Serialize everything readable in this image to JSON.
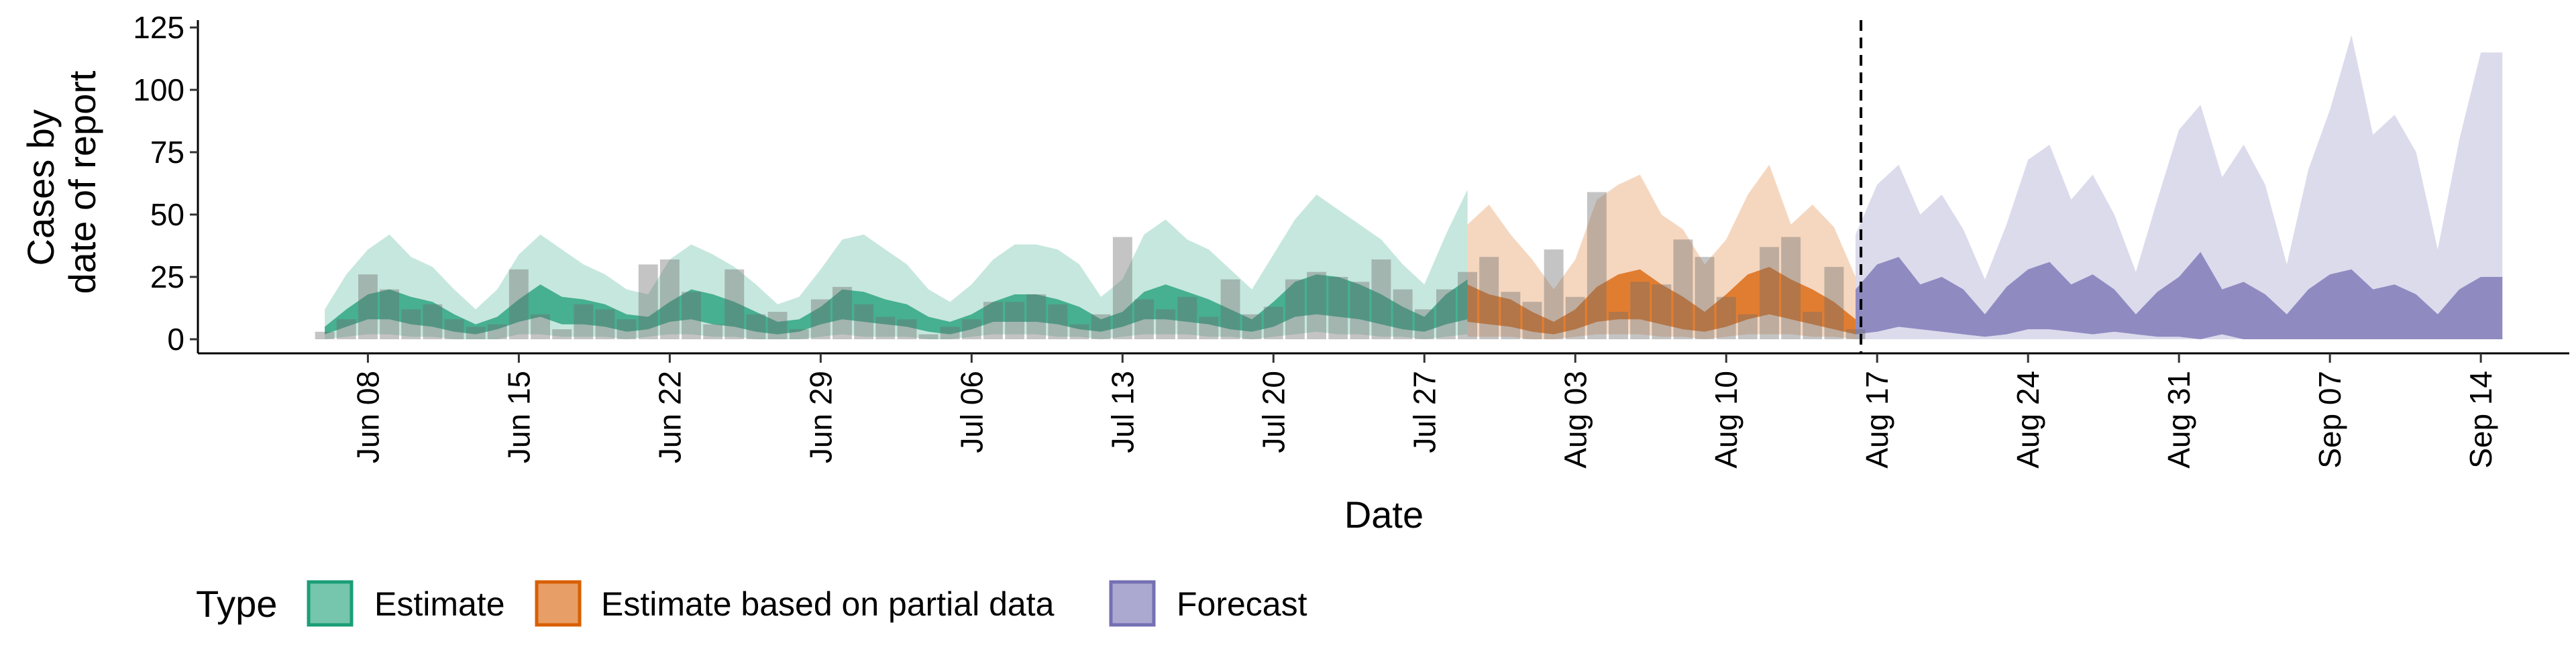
{
  "chart_data": {
    "type": "area",
    "xlabel": "Date",
    "ylabel_lines": [
      "Cases by",
      "date of report"
    ],
    "x_start": "2020-06-05",
    "forecast_start": "2020-08-16",
    "ylim": [
      -5,
      130
    ],
    "yticks": [
      0,
      25,
      50,
      75,
      100,
      125
    ],
    "ytick_labels": [
      "0",
      "25",
      "50",
      "75",
      "100",
      "125"
    ],
    "xtick_labels": [
      "Jun 08",
      "Jun 15",
      "Jun 22",
      "Jun 29",
      "Jul 06",
      "Jul 13",
      "Jul 20",
      "Jul 27",
      "Aug 03",
      "Aug 10",
      "Aug 17",
      "Aug 24",
      "Aug 31",
      "Sep 07",
      "Sep 14"
    ],
    "xtick_dates": [
      "2020-06-08",
      "2020-06-15",
      "2020-06-22",
      "2020-06-29",
      "2020-07-06",
      "2020-07-13",
      "2020-07-20",
      "2020-07-27",
      "2020-08-03",
      "2020-08-10",
      "2020-08-17",
      "2020-08-24",
      "2020-08-31",
      "2020-09-07",
      "2020-09-14"
    ],
    "legend": {
      "title": "Type",
      "position": "bottom",
      "entries": [
        {
          "label": "Estimate",
          "color": "#1b9e77"
        },
        {
          "label": "Estimate based on partial data",
          "color": "#d95f02"
        },
        {
          "label": "Forecast",
          "color": "#7570b3"
        }
      ]
    },
    "reported_cases": {
      "dates": [
        "2020-06-06",
        "2020-06-07",
        "2020-06-08",
        "2020-06-09",
        "2020-06-10",
        "2020-06-11",
        "2020-06-12",
        "2020-06-13",
        "2020-06-14",
        "2020-06-15",
        "2020-06-16",
        "2020-06-17",
        "2020-06-18",
        "2020-06-19",
        "2020-06-20",
        "2020-06-21",
        "2020-06-22",
        "2020-06-23",
        "2020-06-24",
        "2020-06-25",
        "2020-06-26",
        "2020-06-27",
        "2020-06-28",
        "2020-06-29",
        "2020-06-30",
        "2020-07-01",
        "2020-07-02",
        "2020-07-03",
        "2020-07-04",
        "2020-07-05",
        "2020-07-06",
        "2020-07-07",
        "2020-07-08",
        "2020-07-09",
        "2020-07-10",
        "2020-07-11",
        "2020-07-12",
        "2020-07-13",
        "2020-07-14",
        "2020-07-15",
        "2020-07-16",
        "2020-07-17",
        "2020-07-18",
        "2020-07-19",
        "2020-07-20",
        "2020-07-21",
        "2020-07-22",
        "2020-07-23",
        "2020-07-24",
        "2020-07-25",
        "2020-07-26",
        "2020-07-27",
        "2020-07-28",
        "2020-07-29",
        "2020-07-30",
        "2020-07-31",
        "2020-08-01",
        "2020-08-02",
        "2020-08-03",
        "2020-08-04",
        "2020-08-05",
        "2020-08-06",
        "2020-08-07",
        "2020-08-08",
        "2020-08-09",
        "2020-08-10",
        "2020-08-11",
        "2020-08-12",
        "2020-08-13",
        "2020-08-14",
        "2020-08-15",
        "2020-08-16"
      ],
      "values": [
        3,
        8,
        26,
        20,
        12,
        14,
        8,
        5,
        6,
        28,
        10,
        4,
        14,
        12,
        8,
        30,
        32,
        19,
        6,
        28,
        10,
        11,
        4,
        16,
        21,
        14,
        9,
        8,
        2,
        5,
        8,
        15,
        15,
        18,
        14,
        6,
        10,
        41,
        16,
        12,
        17,
        9,
        24,
        10,
        13,
        24,
        27,
        25,
        23,
        32,
        20,
        12,
        20,
        27,
        33,
        19,
        15,
        36,
        17,
        59,
        11,
        23,
        22,
        40,
        33,
        17,
        10,
        37,
        41,
        11,
        29,
        4
      ]
    },
    "series": [
      {
        "name": "Estimate",
        "color": "#1b9e77",
        "dates": [
          "2020-06-06",
          "2020-06-07",
          "2020-06-08",
          "2020-06-09",
          "2020-06-10",
          "2020-06-11",
          "2020-06-12",
          "2020-06-13",
          "2020-06-14",
          "2020-06-15",
          "2020-06-16",
          "2020-06-17",
          "2020-06-18",
          "2020-06-19",
          "2020-06-20",
          "2020-06-21",
          "2020-06-22",
          "2020-06-23",
          "2020-06-24",
          "2020-06-25",
          "2020-06-26",
          "2020-06-27",
          "2020-06-28",
          "2020-06-29",
          "2020-06-30",
          "2020-07-01",
          "2020-07-02",
          "2020-07-03",
          "2020-07-04",
          "2020-07-05",
          "2020-07-06",
          "2020-07-07",
          "2020-07-08",
          "2020-07-09",
          "2020-07-10",
          "2020-07-11",
          "2020-07-12",
          "2020-07-13",
          "2020-07-14",
          "2020-07-15",
          "2020-07-16",
          "2020-07-17",
          "2020-07-18",
          "2020-07-19",
          "2020-07-20",
          "2020-07-21",
          "2020-07-22",
          "2020-07-23",
          "2020-07-24",
          "2020-07-25",
          "2020-07-26",
          "2020-07-27",
          "2020-07-28",
          "2020-07-29"
        ],
        "lower_90": [
          0,
          1,
          2,
          2,
          1,
          1,
          0,
          0,
          0,
          2,
          2,
          1,
          1,
          1,
          0,
          1,
          2,
          2,
          1,
          1,
          0,
          0,
          0,
          1,
          2,
          1,
          1,
          1,
          0,
          0,
          1,
          2,
          2,
          2,
          1,
          1,
          0,
          1,
          2,
          2,
          2,
          1,
          1,
          0,
          1,
          2,
          3,
          2,
          2,
          1,
          1,
          0,
          1,
          2
        ],
        "lower_50": [
          2,
          5,
          8,
          8,
          6,
          5,
          3,
          2,
          4,
          7,
          9,
          6,
          6,
          5,
          3,
          4,
          7,
          8,
          6,
          5,
          3,
          2,
          3,
          6,
          8,
          7,
          6,
          5,
          3,
          2,
          4,
          7,
          7,
          7,
          6,
          4,
          3,
          5,
          8,
          8,
          7,
          6,
          4,
          3,
          5,
          9,
          10,
          9,
          8,
          6,
          4,
          3,
          6,
          8
        ],
        "upper_50": [
          5,
          12,
          18,
          20,
          17,
          15,
          10,
          6,
          9,
          16,
          22,
          17,
          16,
          14,
          10,
          9,
          15,
          20,
          18,
          15,
          11,
          7,
          8,
          13,
          20,
          19,
          16,
          14,
          9,
          7,
          10,
          15,
          18,
          18,
          16,
          13,
          8,
          11,
          19,
          22,
          19,
          16,
          12,
          8,
          15,
          23,
          26,
          25,
          22,
          18,
          13,
          9,
          18,
          24
        ],
        "upper_90": [
          12,
          26,
          36,
          42,
          33,
          29,
          20,
          12,
          20,
          34,
          42,
          36,
          30,
          26,
          20,
          18,
          32,
          38,
          34,
          29,
          22,
          14,
          17,
          28,
          40,
          42,
          36,
          30,
          20,
          15,
          22,
          32,
          38,
          38,
          36,
          30,
          17,
          24,
          42,
          48,
          40,
          36,
          28,
          20,
          34,
          48,
          58,
          52,
          46,
          40,
          30,
          22,
          42,
          60
        ]
      },
      {
        "name": "Estimate based on partial data",
        "color": "#d95f02",
        "dates": [
          "2020-07-29",
          "2020-07-30",
          "2020-07-31",
          "2020-08-01",
          "2020-08-02",
          "2020-08-03",
          "2020-08-04",
          "2020-08-05",
          "2020-08-06",
          "2020-08-07",
          "2020-08-08",
          "2020-08-09",
          "2020-08-10",
          "2020-08-11",
          "2020-08-12",
          "2020-08-13",
          "2020-08-14",
          "2020-08-15",
          "2020-08-16"
        ],
        "lower_90": [
          1,
          1,
          1,
          0,
          0,
          1,
          2,
          2,
          2,
          1,
          1,
          0,
          1,
          2,
          2,
          2,
          1,
          1,
          0
        ],
        "lower_50": [
          7,
          6,
          5,
          3,
          2,
          4,
          7,
          8,
          8,
          6,
          4,
          3,
          5,
          8,
          10,
          8,
          6,
          4,
          2
        ],
        "upper_50": [
          22,
          18,
          16,
          11,
          7,
          12,
          21,
          26,
          28,
          22,
          17,
          11,
          18,
          26,
          29,
          24,
          20,
          15,
          8
        ],
        "upper_90": [
          46,
          54,
          42,
          32,
          20,
          32,
          56,
          62,
          66,
          50,
          44,
          30,
          40,
          58,
          70,
          46,
          54,
          45,
          25
        ]
      },
      {
        "name": "Forecast",
        "color": "#7570b3",
        "dates": [
          "2020-08-16",
          "2020-08-17",
          "2020-08-18",
          "2020-08-19",
          "2020-08-20",
          "2020-08-21",
          "2020-08-22",
          "2020-08-23",
          "2020-08-24",
          "2020-08-25",
          "2020-08-26",
          "2020-08-27",
          "2020-08-28",
          "2020-08-29",
          "2020-08-30",
          "2020-08-31",
          "2020-09-01",
          "2020-09-02",
          "2020-09-03",
          "2020-09-04",
          "2020-09-05",
          "2020-09-06",
          "2020-09-07",
          "2020-09-08",
          "2020-09-09",
          "2020-09-10",
          "2020-09-11",
          "2020-09-12",
          "2020-09-13",
          "2020-09-14",
          "2020-09-15"
        ],
        "lower_90": [
          0,
          0,
          0,
          0,
          0,
          0,
          0,
          0,
          0,
          0,
          0,
          0,
          0,
          0,
          0,
          0,
          0,
          0,
          0,
          0,
          0,
          0,
          0,
          0,
          0,
          0,
          0,
          0,
          0,
          0,
          0
        ],
        "lower_50": [
          2,
          3,
          5,
          4,
          3,
          2,
          1,
          2,
          4,
          4,
          3,
          2,
          3,
          2,
          1,
          1,
          0,
          2,
          0,
          0,
          0,
          0,
          0,
          0,
          0,
          0,
          0,
          0,
          0,
          0,
          0
        ],
        "upper_50": [
          20,
          30,
          33,
          22,
          25,
          20,
          10,
          21,
          28,
          31,
          22,
          26,
          20,
          10,
          19,
          25,
          35,
          20,
          23,
          18,
          10,
          20,
          26,
          28,
          20,
          22,
          18,
          10,
          20,
          25,
          25
        ],
        "upper_90": [
          42,
          62,
          70,
          50,
          58,
          44,
          24,
          46,
          72,
          78,
          56,
          66,
          50,
          27,
          56,
          84,
          94,
          65,
          78,
          62,
          30,
          68,
          92,
          122,
          82,
          90,
          75,
          36,
          80,
          115,
          115
        ]
      }
    ]
  }
}
